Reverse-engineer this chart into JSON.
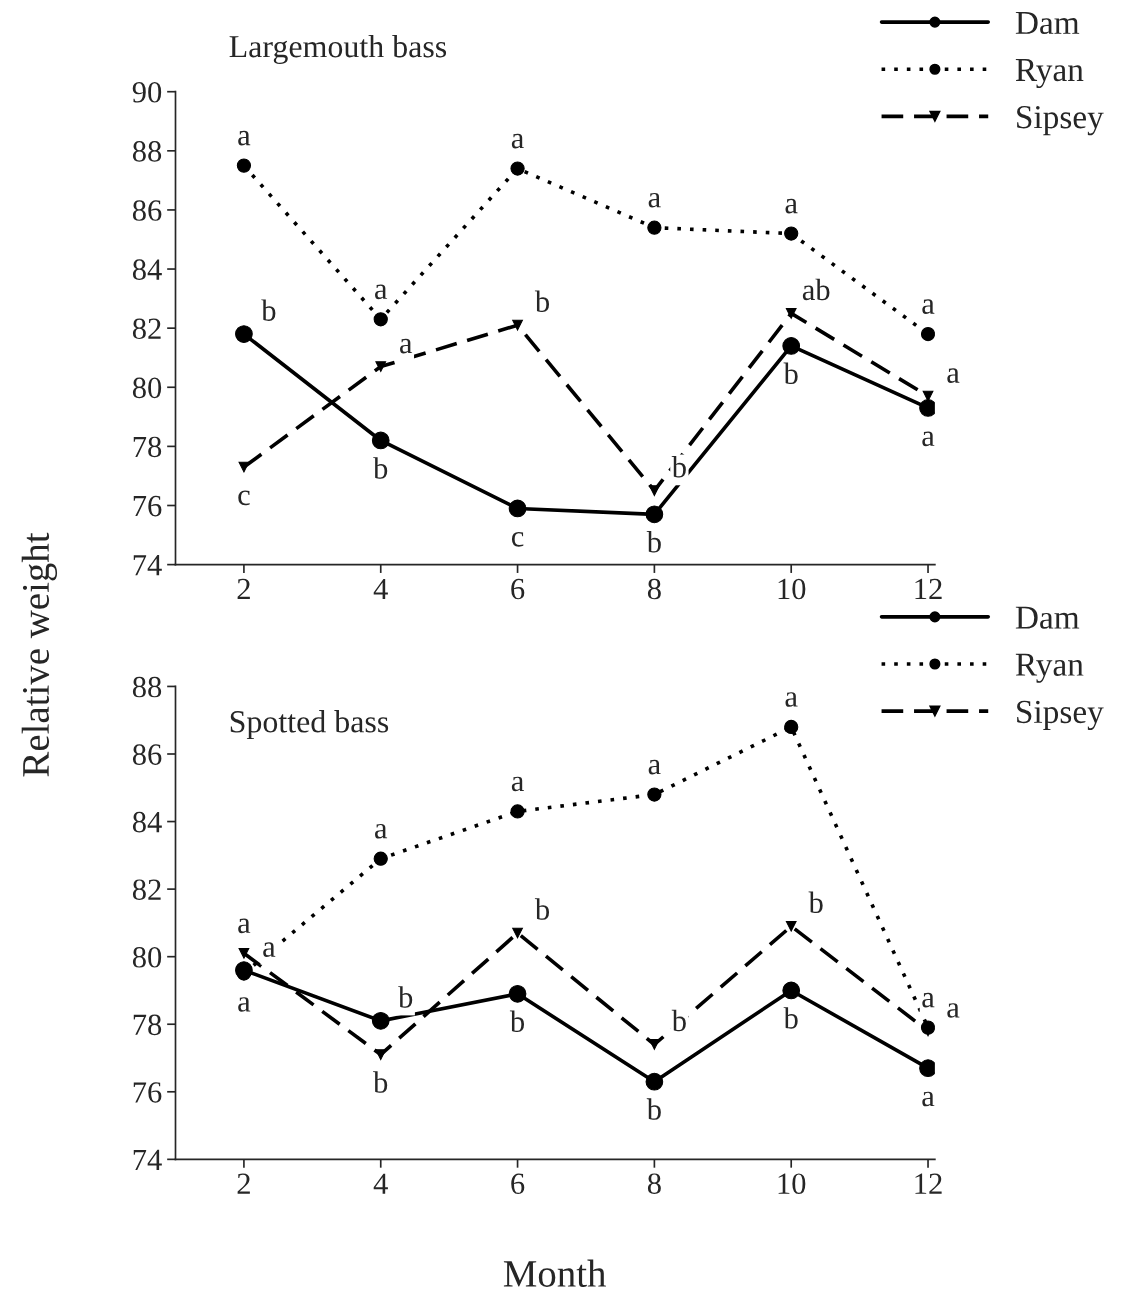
{
  "chart_data": [
    {
      "type": "line",
      "title": "Largemouth bass",
      "ylabel": "Relative weight",
      "x": [
        2,
        4,
        6,
        8,
        10,
        12
      ],
      "series": [
        {
          "name": "Dam",
          "color": "#000000",
          "values": [
            81.8,
            78.2,
            75.9,
            75.7,
            81.4,
            79.3
          ],
          "line_style": "solid",
          "marker": "circle"
        },
        {
          "name": "Ryan",
          "color": "#000000",
          "values": [
            87.5,
            82.3,
            87.4,
            85.4,
            85.2,
            81.8
          ],
          "line_style": "dotted",
          "marker": "circle"
        },
        {
          "name": "Sipsey",
          "color": "#000000",
          "values": [
            77.3,
            80.7,
            82.1,
            76.5,
            82.5,
            79.7
          ],
          "line_style": "dashed",
          "marker": "triangle"
        }
      ],
      "xlim": [
        1,
        12.1
      ],
      "xticks": [
        2,
        4,
        6,
        8,
        10,
        12
      ],
      "ylim": [
        74,
        90
      ],
      "yticks": [
        74,
        76,
        78,
        80,
        82,
        84,
        86,
        88,
        90
      ],
      "grid": false,
      "legend": "top right",
      "annotations": [
        {
          "text": "a",
          "x": 2,
          "y": 87.5
        },
        {
          "text": "b",
          "x": 2,
          "y": 81.8
        },
        {
          "text": "c",
          "x": 2,
          "y": 77.3
        },
        {
          "text": "a",
          "x": 4,
          "y": 82.3
        },
        {
          "text": "a",
          "x": 4,
          "y": 80.7
        },
        {
          "text": "b",
          "x": 4,
          "y": 78.2
        },
        {
          "text": "a",
          "x": 6,
          "y": 87.4
        },
        {
          "text": "b",
          "x": 6,
          "y": 82.1
        },
        {
          "text": "c",
          "x": 6,
          "y": 75.9
        },
        {
          "text": "a",
          "x": 8,
          "y": 85.4
        },
        {
          "text": "b",
          "x": 8,
          "y": 76.5
        },
        {
          "text": "b",
          "x": 8,
          "y": 75.7
        },
        {
          "text": "a",
          "x": 10,
          "y": 85.2
        },
        {
          "text": "ab",
          "x": 10,
          "y": 82.5
        },
        {
          "text": "b",
          "x": 10,
          "y": 81.4
        },
        {
          "text": "a",
          "x": 12,
          "y": 81.8
        },
        {
          "text": "a",
          "x": 12,
          "y": 79.7
        },
        {
          "text": "a",
          "x": 12,
          "y": 79.3
        }
      ]
    },
    {
      "type": "line",
      "title": "Spotted bass",
      "xlabel": "Month",
      "x": [
        2,
        4,
        6,
        8,
        10,
        12
      ],
      "series": [
        {
          "name": "Dam",
          "color": "#000000",
          "values": [
            79.6,
            78.1,
            78.9,
            76.3,
            79.0,
            76.7
          ],
          "line_style": "solid",
          "marker": "circle"
        },
        {
          "name": "Ryan",
          "color": "#000000",
          "values": [
            79.5,
            82.9,
            84.3,
            84.8,
            86.8,
            77.9
          ],
          "line_style": "dotted",
          "marker": "circle"
        },
        {
          "name": "Sipsey",
          "color": "#000000",
          "values": [
            80.1,
            77.1,
            80.7,
            77.4,
            80.9,
            77.8
          ],
          "line_style": "dashed",
          "marker": "triangle"
        }
      ],
      "xlim": [
        1,
        12.1
      ],
      "xticks": [
        2,
        4,
        6,
        8,
        10,
        12
      ],
      "ylim": [
        74,
        88
      ],
      "yticks": [
        74,
        76,
        78,
        80,
        82,
        84,
        86,
        88
      ],
      "grid": false,
      "legend": "top right",
      "annotations": [
        {
          "text": "a",
          "x": 2,
          "y": 80.1
        },
        {
          "text": "a",
          "x": 2,
          "y": 79.6
        },
        {
          "text": "a",
          "x": 2,
          "y": 79.5
        },
        {
          "text": "a",
          "x": 4,
          "y": 82.9
        },
        {
          "text": "b",
          "x": 4,
          "y": 78.1
        },
        {
          "text": "b",
          "x": 4,
          "y": 77.1
        },
        {
          "text": "a",
          "x": 6,
          "y": 84.3
        },
        {
          "text": "b",
          "x": 6,
          "y": 80.7
        },
        {
          "text": "b",
          "x": 6,
          "y": 78.9
        },
        {
          "text": "a",
          "x": 8,
          "y": 84.8
        },
        {
          "text": "b",
          "x": 8,
          "y": 77.4
        },
        {
          "text": "b",
          "x": 8,
          "y": 76.3
        },
        {
          "text": "a",
          "x": 10,
          "y": 86.8
        },
        {
          "text": "b",
          "x": 10,
          "y": 80.9
        },
        {
          "text": "b",
          "x": 10,
          "y": 79.0
        },
        {
          "text": "a",
          "x": 12,
          "y": 77.9
        },
        {
          "text": "a",
          "x": 12,
          "y": 77.8
        },
        {
          "text": "a",
          "x": 12,
          "y": 76.7
        }
      ]
    }
  ]
}
